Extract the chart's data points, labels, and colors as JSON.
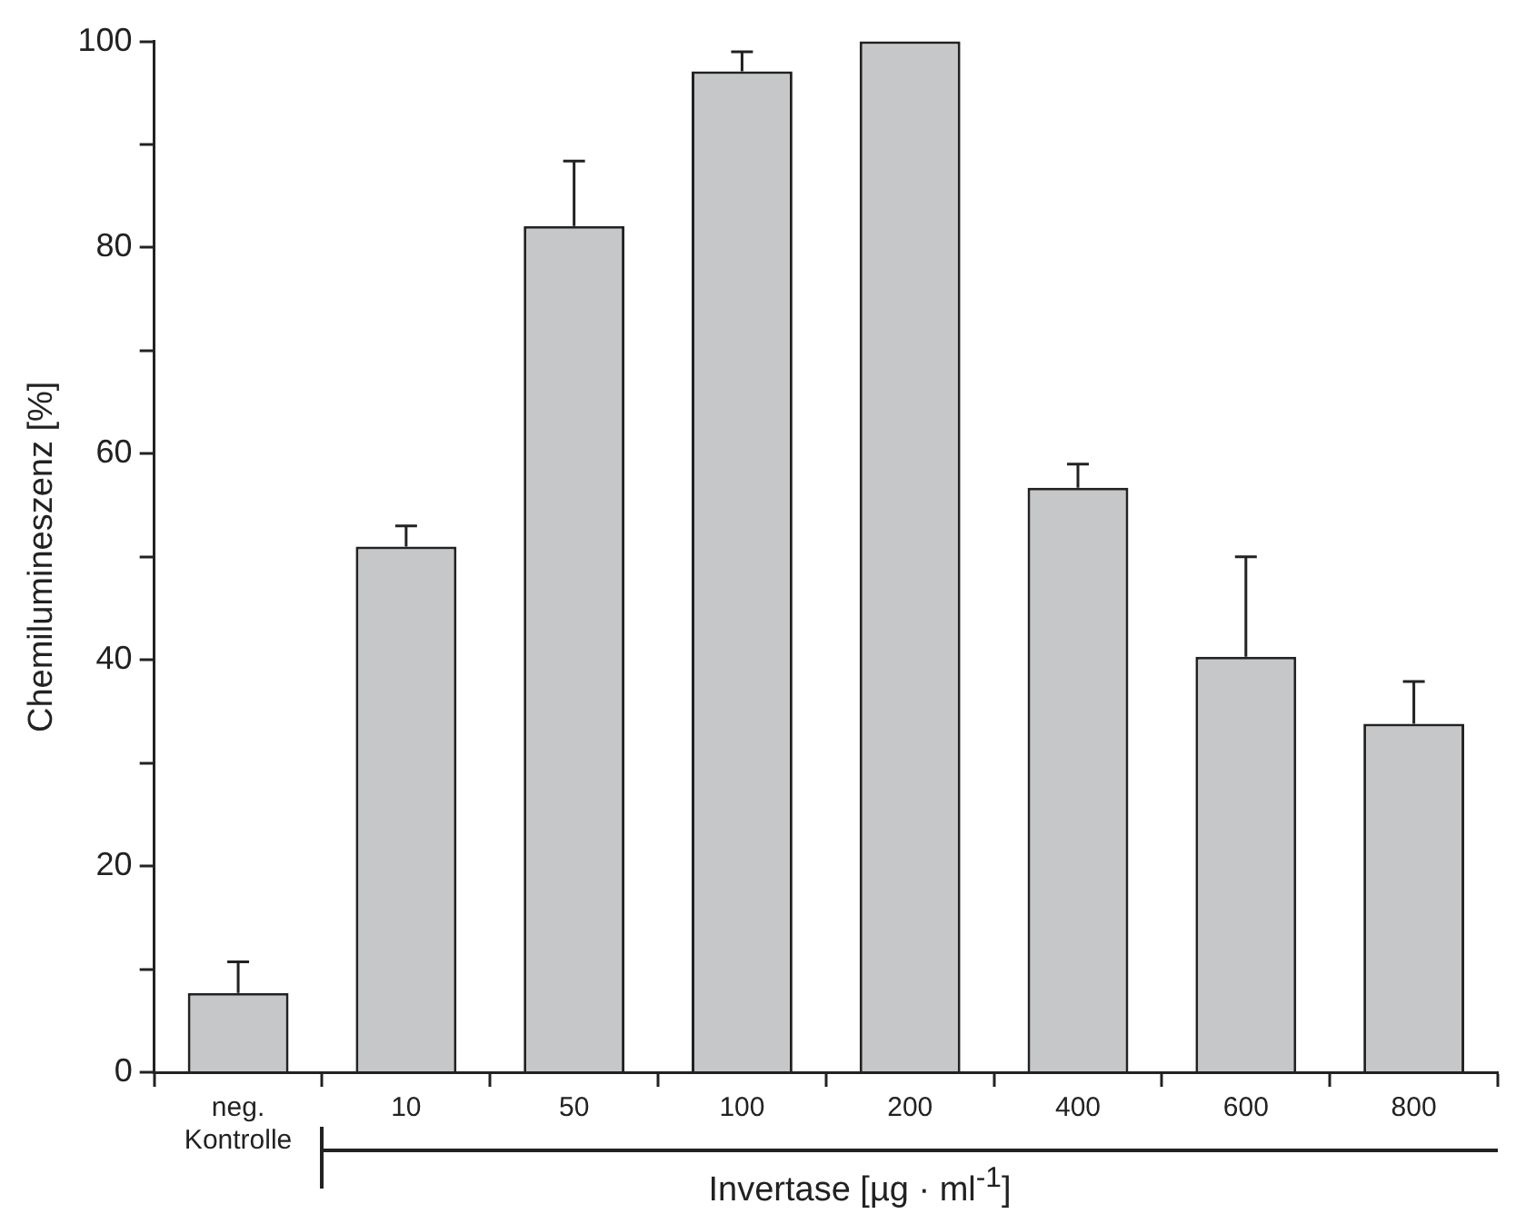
{
  "chart_data": {
    "type": "bar",
    "xlabel": "Invertase [µg · ml$^{-1}$]",
    "ylabel": "Chemilumineszenz [%]",
    "categories": [
      "neg. Kontrolle",
      "10",
      "50",
      "100",
      "200",
      "400",
      "600",
      "800"
    ],
    "values": [
      7.7,
      51.0,
      82.1,
      97.1,
      100,
      56.7,
      40.3,
      33.8
    ],
    "errors": [
      [
        7.7,
        10.7
      ],
      [
        51.0,
        53.0
      ],
      [
        82.1,
        88.4
      ],
      [
        97.1,
        99.0
      ],
      null,
      [
        56.7,
        59.0
      ],
      [
        40.3,
        50.0
      ],
      [
        33.8,
        37.9
      ]
    ],
    "color": "#c6c7c9",
    "ylim": [
      0,
      100
    ],
    "yticks": [
      0,
      {
        "value": 10,
        "label": null
      },
      20,
      {
        "value": 30,
        "label": null
      },
      40,
      {
        "value": 50,
        "label": null
      },
      60,
      {
        "value": 70,
        "label": null
      },
      80,
      {
        "value": 90,
        "label": null
      },
      100
    ],
    "grid": false,
    "legend": false
  }
}
